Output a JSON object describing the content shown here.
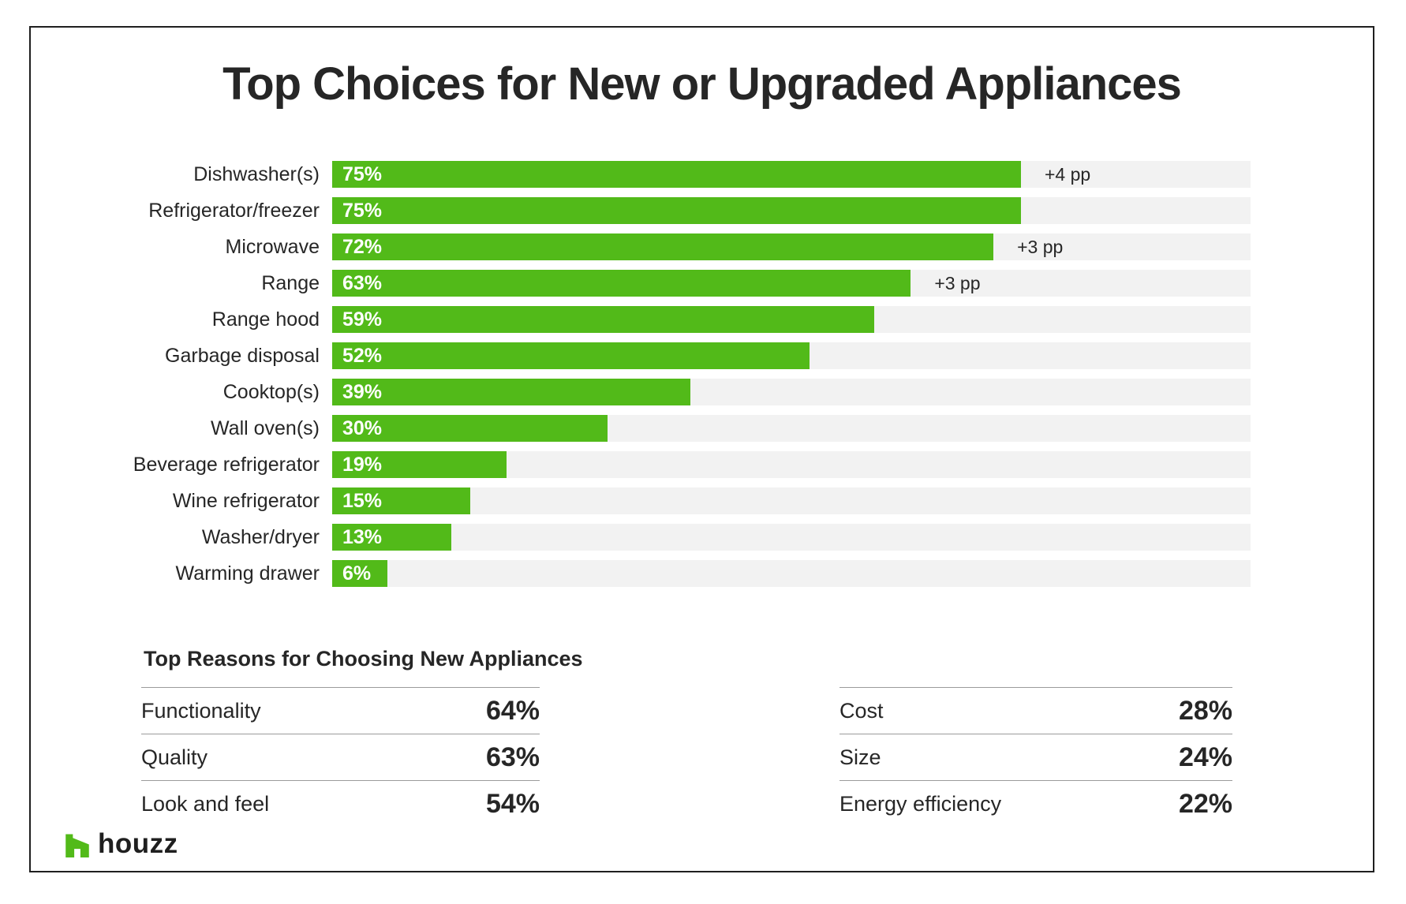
{
  "chart_data": {
    "type": "bar",
    "orientation": "horizontal",
    "title": "Top Choices for New or Upgraded Appliances",
    "xlabel": "",
    "ylabel": "",
    "xlim": [
      0,
      100
    ],
    "unit": "%",
    "grid": false,
    "legend": false,
    "bars": [
      {
        "label": "Dishwasher(s)",
        "value": 75,
        "value_label": "75%",
        "annotation": "+4 pp"
      },
      {
        "label": "Refrigerator/freezer",
        "value": 75,
        "value_label": "75%",
        "annotation": ""
      },
      {
        "label": "Microwave",
        "value": 72,
        "value_label": "72%",
        "annotation": "+3 pp"
      },
      {
        "label": "Range",
        "value": 63,
        "value_label": "63%",
        "annotation": "+3 pp"
      },
      {
        "label": "Range hood",
        "value": 59,
        "value_label": "59%",
        "annotation": ""
      },
      {
        "label": "Garbage disposal",
        "value": 52,
        "value_label": "52%",
        "annotation": ""
      },
      {
        "label": "Cooktop(s)",
        "value": 39,
        "value_label": "39%",
        "annotation": ""
      },
      {
        "label": "Wall oven(s)",
        "value": 30,
        "value_label": "30%",
        "annotation": ""
      },
      {
        "label": "Beverage refrigerator",
        "value": 19,
        "value_label": "19%",
        "annotation": ""
      },
      {
        "label": "Wine refrigerator",
        "value": 15,
        "value_label": "15%",
        "annotation": ""
      },
      {
        "label": "Washer/dryer",
        "value": 13,
        "value_label": "13%",
        "annotation": ""
      },
      {
        "label": "Warming drawer",
        "value": 6,
        "value_label": "6%",
        "annotation": ""
      }
    ],
    "colors": {
      "bar": "#52ba19",
      "track": "#f2f2f2",
      "value_text": "#ffffff",
      "annotation_text": "#262626"
    }
  },
  "reasons": {
    "heading": "Top Reasons for Choosing New Appliances",
    "columns": [
      {
        "items": [
          {
            "label": "Functionality",
            "value": "64%"
          },
          {
            "label": "Quality",
            "value": "63%"
          },
          {
            "label": "Look and feel",
            "value": "54%"
          }
        ]
      },
      {
        "items": [
          {
            "label": "Cost",
            "value": "28%"
          },
          {
            "label": "Size",
            "value": "24%"
          },
          {
            "label": "Energy efficiency",
            "value": "22%"
          }
        ]
      }
    ]
  },
  "footer": {
    "brand": "houzz"
  },
  "colors": {
    "accent_green": "#52ba19",
    "track_gray": "#f2f2f2",
    "text_dark": "#262626",
    "frame_border": "#1f1f1f",
    "divider_gray": "#9b9b9b"
  }
}
